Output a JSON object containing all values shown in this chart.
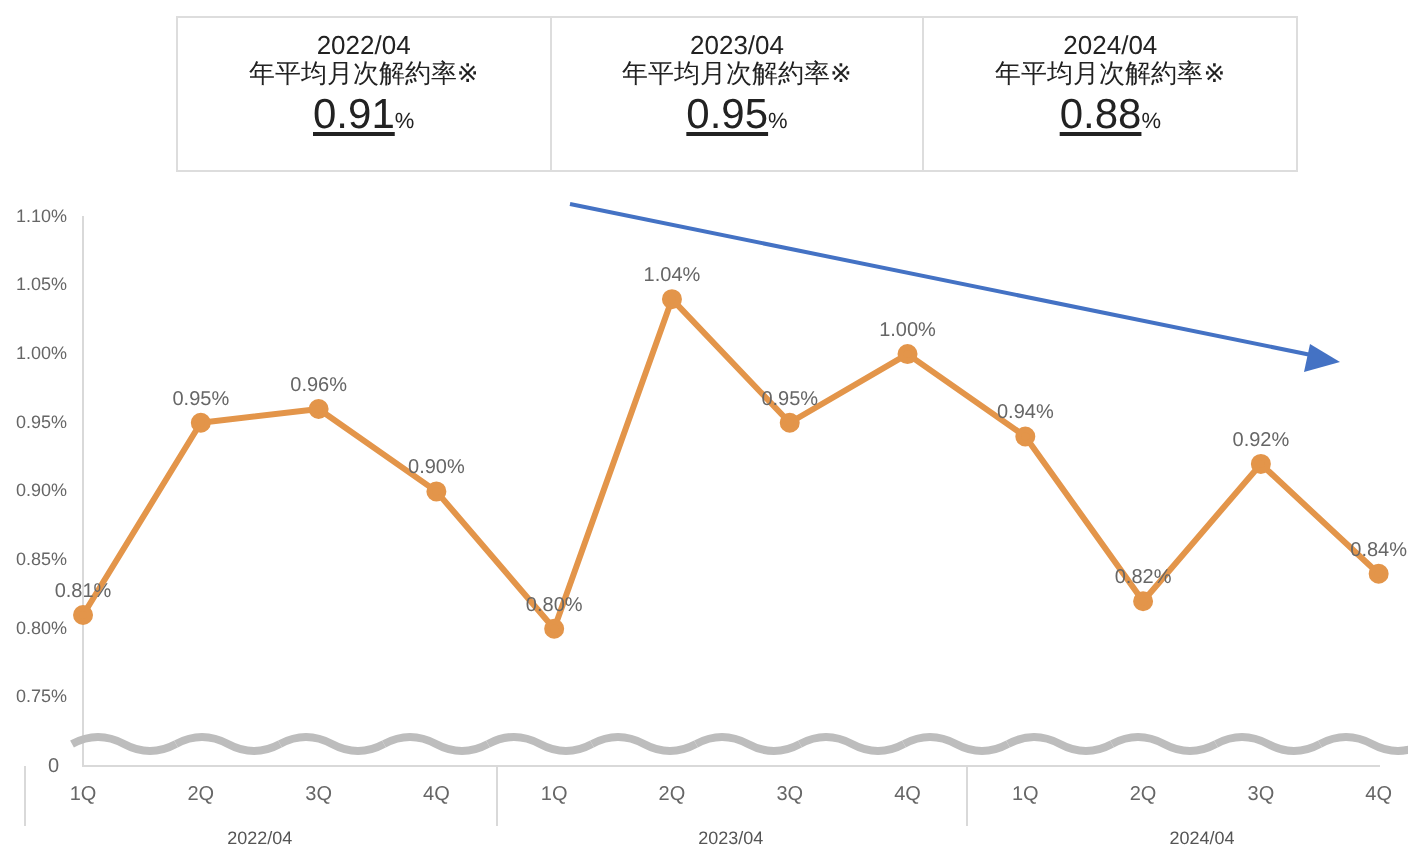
{
  "chart_data": [
    {
      "type": "other",
      "categories": [
        "2022/04",
        "2023/04",
        "2024/04"
      ],
      "subtitle": "年平均月次解約率※",
      "values": [
        0.91,
        0.95,
        0.88
      ],
      "value_labels": [
        "0.91%",
        "0.95%",
        "0.88%"
      ]
    },
    {
      "type": "line",
      "categories": [
        "1Q",
        "2Q",
        "3Q",
        "4Q",
        "1Q",
        "2Q",
        "3Q",
        "4Q",
        "1Q",
        "2Q",
        "3Q",
        "4Q"
      ],
      "series": [
        {
          "color": "#e3954a",
          "values": [
            0.81,
            0.95,
            0.96,
            0.9,
            0.8,
            1.04,
            0.95,
            1.0,
            0.94,
            0.82,
            0.92,
            0.84
          ],
          "value_labels": [
            "0.81%",
            "0.95%",
            "0.96%",
            "0.90%",
            "0.80%",
            "1.04%",
            "0.95%",
            "1.00%",
            "0.94%",
            "0.82%",
            "0.92%",
            "0.84%"
          ]
        }
      ],
      "ylim": [
        0.7,
        1.1
      ],
      "yticks": [
        {
          "value": 0.75,
          "label": "0.75%"
        },
        {
          "value": 0.8,
          "label": "0.80%"
        },
        {
          "value": 0.85,
          "label": "0.85%"
        },
        {
          "value": 0.9,
          "label": "0.90%"
        },
        {
          "value": 0.95,
          "label": "0.95%"
        },
        {
          "value": 1.0,
          "label": "1.00%"
        },
        {
          "value": 1.05,
          "label": "1.05%"
        },
        {
          "value": 1.1,
          "label": "1.10%"
        }
      ],
      "annotations": [
        "0",
        "2022/04",
        "2023/04",
        "2024/04"
      ],
      "marker": "circle",
      "grid": false,
      "legend": false
    }
  ]
}
